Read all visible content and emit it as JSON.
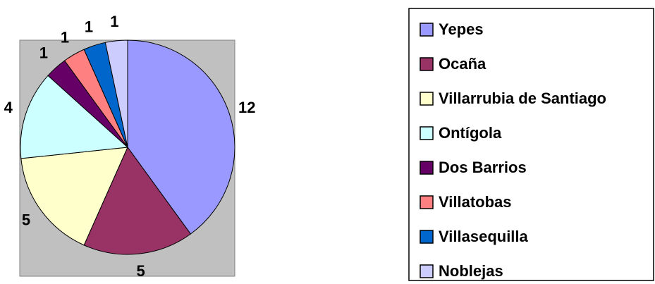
{
  "chart_data": {
    "type": "pie",
    "categories": [
      "Yepes",
      "Ocaña",
      "Villarrubia de Santiago",
      "Ontígola",
      "Dos Barrios",
      "Villatobas",
      "Villasequilla",
      "Noblejas"
    ],
    "values": [
      12,
      5,
      5,
      4,
      1,
      1,
      1,
      1
    ],
    "colors": [
      "#9999ff",
      "#993366",
      "#ffffcc",
      "#ccffff",
      "#660066",
      "#ff8080",
      "#0066cc",
      "#ccccff"
    ],
    "legend": "right"
  }
}
